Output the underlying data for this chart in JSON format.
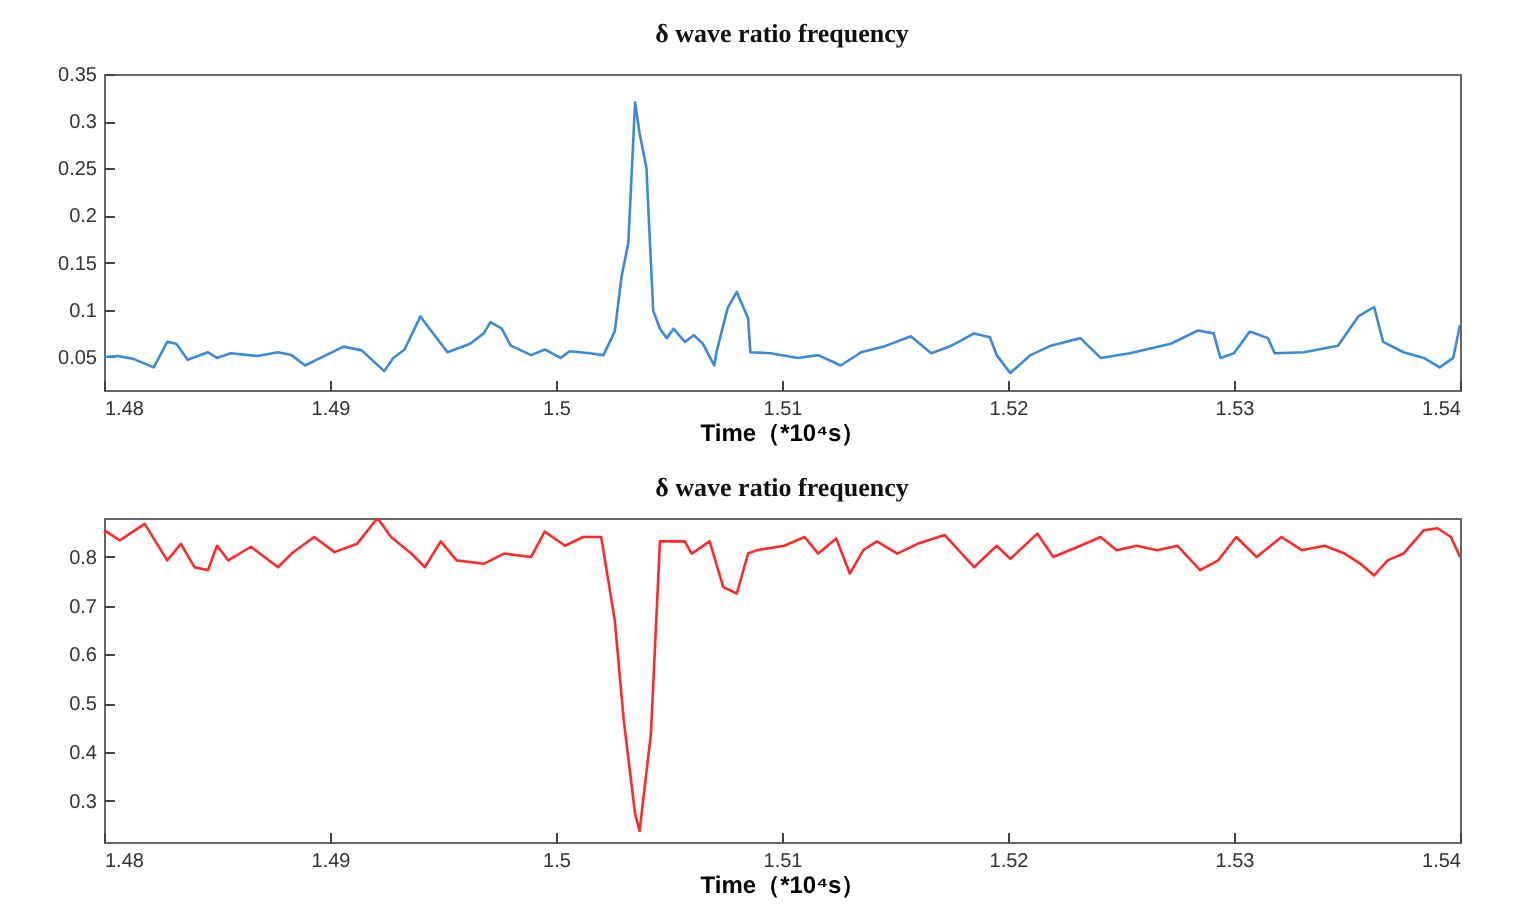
{
  "chart_data": [
    {
      "type": "line",
      "title": "δ wave ratio frequency",
      "xlabel": "Time（*10⁴s）",
      "xlim": [
        1.48,
        1.54
      ],
      "xticks": [
        1.48,
        1.49,
        1.5,
        1.51,
        1.52,
        1.53,
        1.54
      ],
      "ylim": [
        0.015,
        0.35
      ],
      "yticks": [
        0.05,
        0.1,
        0.15,
        0.2,
        0.25,
        0.3,
        0.35
      ],
      "grid": false,
      "series": [
        {
          "color": "#3a8ad6",
          "x": [
            1.48,
            1.4806,
            1.4813,
            1.4822,
            1.4828,
            1.4832,
            1.4837,
            1.4846,
            1.485,
            1.4856,
            1.4868,
            1.4877,
            1.4883,
            1.4889,
            1.4894,
            1.4906,
            1.4914,
            1.4924,
            1.4928,
            1.4933,
            1.494,
            1.4945,
            1.4952,
            1.4962,
            1.4968,
            1.4971,
            1.4976,
            1.498,
            1.4989,
            1.4995,
            1.5002,
            1.5006,
            1.5015,
            1.5021,
            1.5026,
            1.5029,
            1.5032,
            1.5035,
            1.5037,
            1.504,
            1.5043,
            1.5046,
            1.5049,
            1.5052,
            1.5057,
            1.5061,
            1.5065,
            1.507,
            1.5071,
            1.5076,
            1.508,
            1.5085,
            1.5086,
            1.5095,
            1.5107,
            1.5116,
            1.5126,
            1.5135,
            1.5145,
            1.5157,
            1.5166,
            1.5175,
            1.5185,
            1.5192,
            1.5195,
            1.5201,
            1.521,
            1.5219,
            1.5232,
            1.5241,
            1.5254,
            1.5272,
            1.5284,
            1.5291,
            1.5294,
            1.53,
            1.5307,
            1.5315,
            1.5318,
            1.5331,
            1.5346,
            1.5355,
            1.5362,
            1.5366,
            1.5375,
            1.5384,
            1.5391,
            1.5397,
            1.54
          ],
          "values": [
            0.05,
            0.051,
            0.048,
            0.039,
            0.066,
            0.064,
            0.047,
            0.055,
            0.049,
            0.054,
            0.051,
            0.055,
            0.052,
            0.041,
            0.047,
            0.061,
            0.057,
            0.035,
            0.049,
            0.058,
            0.093,
            0.077,
            0.055,
            0.064,
            0.075,
            0.087,
            0.08,
            0.062,
            0.052,
            0.058,
            0.049,
            0.056,
            0.054,
            0.052,
            0.077,
            0.135,
            0.171,
            0.32,
            0.287,
            0.251,
            0.099,
            0.08,
            0.07,
            0.08,
            0.066,
            0.073,
            0.064,
            0.041,
            0.055,
            0.102,
            0.119,
            0.091,
            0.055,
            0.054,
            0.049,
            0.052,
            0.041,
            0.055,
            0.061,
            0.072,
            0.054,
            0.062,
            0.075,
            0.071,
            0.052,
            0.033,
            0.052,
            0.062,
            0.07,
            0.049,
            0.054,
            0.064,
            0.078,
            0.075,
            0.049,
            0.054,
            0.077,
            0.07,
            0.054,
            0.055,
            0.062,
            0.093,
            0.103,
            0.066,
            0.055,
            0.049,
            0.039,
            0.049,
            0.084
          ]
        }
      ]
    },
    {
      "type": "line",
      "title": "δ wave ratio frequency",
      "xlabel": "Time（*10⁴s）",
      "xlim": [
        1.48,
        1.54
      ],
      "xticks": [
        1.48,
        1.49,
        1.5,
        1.51,
        1.52,
        1.53,
        1.54
      ],
      "ylim": [
        0.215,
        0.88
      ],
      "yticks": [
        0.3,
        0.4,
        0.5,
        0.6,
        0.7,
        0.8
      ],
      "grid": false,
      "series": [
        {
          "color": "#ff2a2a",
          "x": [
            1.48,
            1.4807,
            1.4818,
            1.4828,
            1.4834,
            1.484,
            1.4846,
            1.485,
            1.4855,
            1.4865,
            1.4877,
            1.4883,
            1.4893,
            1.4902,
            1.4912,
            1.4921,
            1.4927,
            1.4936,
            1.4942,
            1.4949,
            1.4956,
            1.4968,
            1.4977,
            1.4989,
            1.4995,
            1.5004,
            1.5012,
            1.502,
            1.5026,
            1.503,
            1.5035,
            1.5037,
            1.5042,
            1.5046,
            1.5057,
            1.506,
            1.5068,
            1.5074,
            1.508,
            1.5085,
            1.5089,
            1.5101,
            1.511,
            1.5116,
            1.5124,
            1.513,
            1.5136,
            1.5142,
            1.5151,
            1.516,
            1.5172,
            1.5185,
            1.5195,
            1.5201,
            1.5213,
            1.522,
            1.5231,
            1.5241,
            1.5248,
            1.5257,
            1.5266,
            1.5275,
            1.5285,
            1.5293,
            1.5301,
            1.531,
            1.5321,
            1.533,
            1.534,
            1.5349,
            1.5356,
            1.5362,
            1.5368,
            1.5375,
            1.5384,
            1.539,
            1.5396,
            1.54
          ],
          "values": [
            0.855,
            0.834,
            0.868,
            0.793,
            0.827,
            0.779,
            0.773,
            0.823,
            0.793,
            0.821,
            0.779,
            0.807,
            0.841,
            0.81,
            0.827,
            0.88,
            0.841,
            0.807,
            0.779,
            0.832,
            0.793,
            0.786,
            0.807,
            0.8,
            0.852,
            0.823,
            0.841,
            0.841,
            0.67,
            0.464,
            0.273,
            0.238,
            0.437,
            0.832,
            0.832,
            0.807,
            0.832,
            0.738,
            0.725,
            0.807,
            0.814,
            0.823,
            0.841,
            0.807,
            0.838,
            0.766,
            0.814,
            0.832,
            0.807,
            0.827,
            0.845,
            0.779,
            0.823,
            0.796,
            0.848,
            0.8,
            0.821,
            0.841,
            0.814,
            0.823,
            0.814,
            0.823,
            0.773,
            0.793,
            0.841,
            0.8,
            0.841,
            0.814,
            0.823,
            0.807,
            0.786,
            0.762,
            0.793,
            0.807,
            0.855,
            0.859,
            0.841,
            0.8
          ]
        }
      ]
    }
  ]
}
